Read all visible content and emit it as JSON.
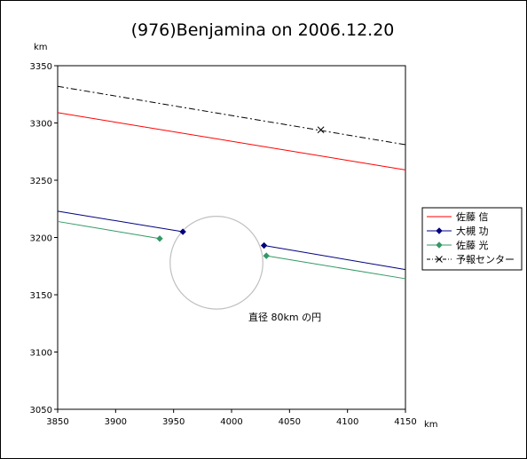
{
  "chart_data": {
    "type": "line",
    "title": "(976)Benjamina on 2006.12.20",
    "xlabel": "km",
    "ylabel": "km",
    "xlim": [
      3850,
      4150
    ],
    "ylim": [
      3050,
      3350
    ],
    "xticks": [
      3850,
      3900,
      3950,
      4000,
      4050,
      4100,
      4150
    ],
    "yticks": [
      3050,
      3100,
      3150,
      3200,
      3250,
      3300,
      3350
    ],
    "grid": false,
    "legend_position": "right",
    "series": [
      {
        "name": "佐藤 信",
        "color": "#ff0000",
        "style": "solid",
        "marker": "none",
        "segments": [
          [
            [
              3850,
              3309
            ],
            [
              4150,
              3259
            ]
          ]
        ]
      },
      {
        "name": "大槻 功",
        "color": "#000080",
        "style": "solid",
        "marker": "diamond",
        "segments": [
          [
            [
              3850,
              3223
            ],
            [
              3958,
              3205
            ]
          ],
          [
            [
              4028,
              3193
            ],
            [
              4150,
              3172
            ]
          ]
        ],
        "points": [
          [
            3958,
            3205
          ],
          [
            4028,
            3193
          ]
        ]
      },
      {
        "name": "佐藤 光",
        "color": "#339966",
        "style": "solid",
        "marker": "diamond",
        "segments": [
          [
            [
              3850,
              3214
            ],
            [
              3938,
              3199
            ]
          ],
          [
            [
              4030,
              3184
            ],
            [
              4150,
              3164
            ]
          ]
        ],
        "points": [
          [
            3938,
            3199
          ],
          [
            4030,
            3184
          ]
        ]
      },
      {
        "name": "予報センター",
        "color": "#000000",
        "style": "dashdot",
        "marker": "x",
        "segments": [
          [
            [
              3850,
              3332
            ],
            [
              4150,
              3281
            ]
          ]
        ],
        "points": [
          [
            4077,
            3294
          ]
        ]
      }
    ],
    "circle": {
      "center": [
        3987,
        3178
      ],
      "diameter": 80,
      "color": "#c0c0c0"
    },
    "annotation": "直径 80km の円"
  }
}
